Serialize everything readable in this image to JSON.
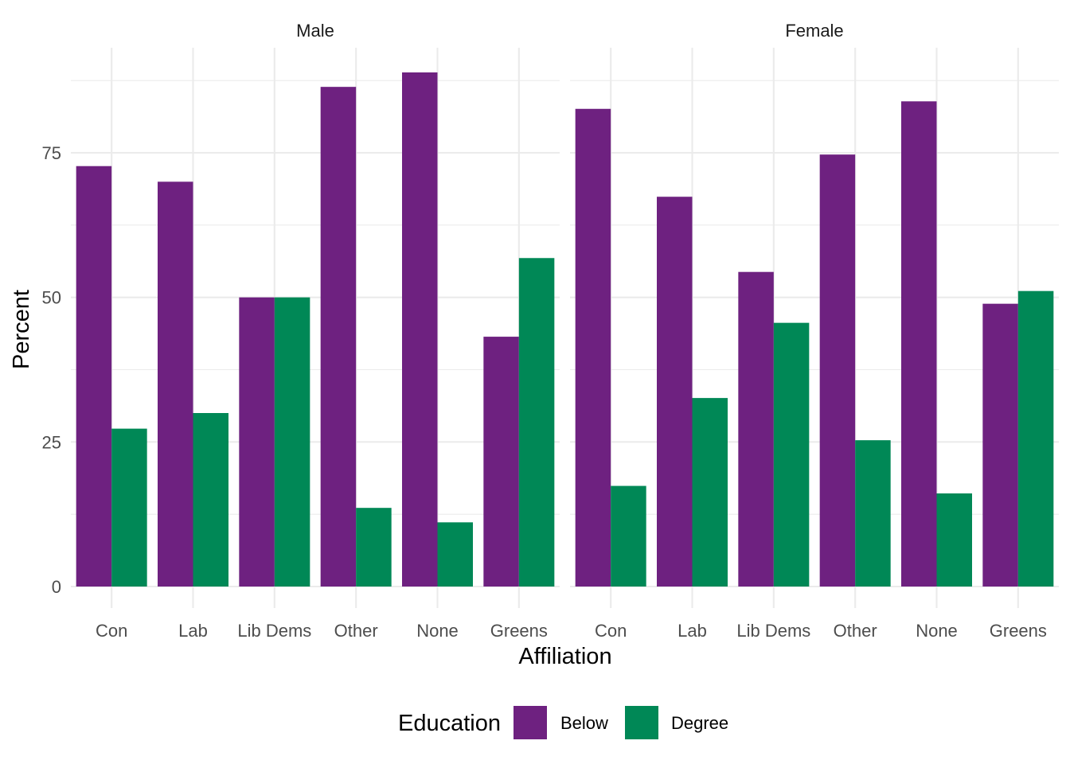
{
  "chart_data": {
    "type": "bar",
    "facet_labels": [
      "Male",
      "Female"
    ],
    "categories": [
      "Con",
      "Lab",
      "Lib Dems",
      "Other",
      "None",
      "Greens"
    ],
    "xlabel": "Affiliation",
    "ylabel": "Percent",
    "ylim": [
      0,
      92
    ],
    "yticks": [
      0,
      25,
      50,
      75
    ],
    "grid": true,
    "legend": {
      "title": "Education",
      "position": "bottom"
    },
    "series": [
      {
        "name": "Below",
        "color": "#6e2180"
      },
      {
        "name": "Degree",
        "color": "#008856"
      }
    ],
    "panels": [
      {
        "facet": "Male",
        "values": {
          "Below": [
            72.7,
            70.0,
            50.0,
            86.4,
            88.9,
            43.2
          ],
          "Degree": [
            27.3,
            30.0,
            50.0,
            13.6,
            11.1,
            56.8
          ]
        }
      },
      {
        "facet": "Female",
        "values": {
          "Below": [
            82.6,
            67.4,
            54.4,
            74.7,
            83.9,
            48.9
          ],
          "Degree": [
            17.4,
            32.6,
            45.6,
            25.3,
            16.1,
            51.1
          ]
        }
      }
    ]
  }
}
